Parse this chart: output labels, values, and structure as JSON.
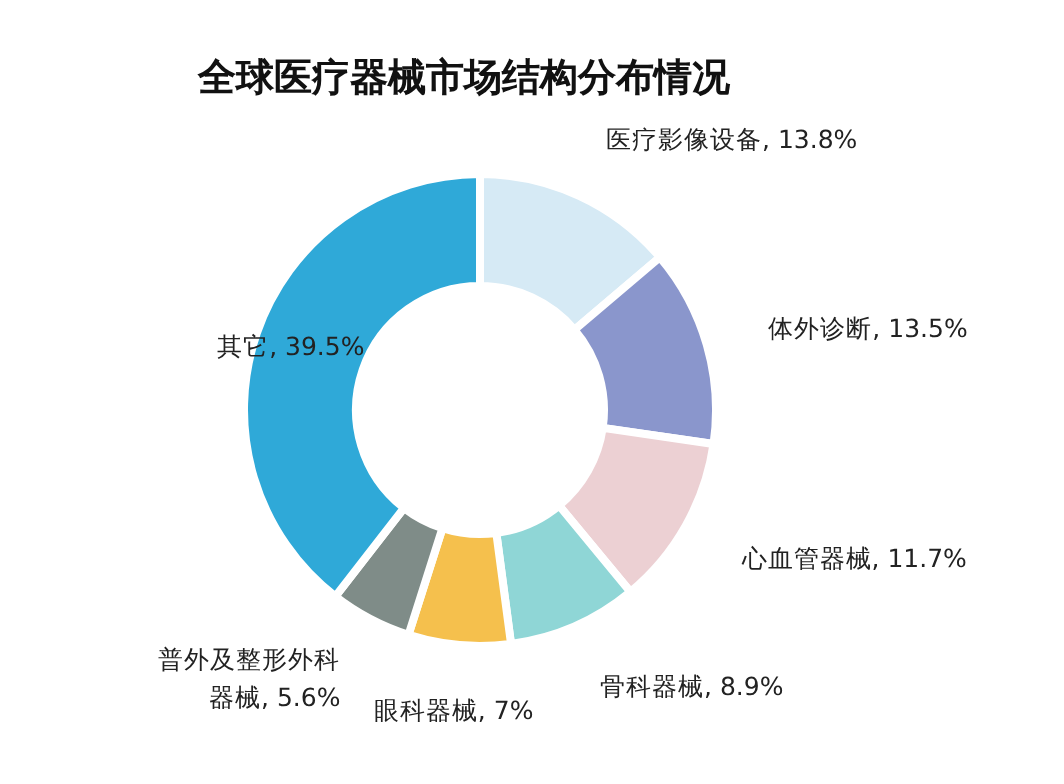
{
  "chart_data": {
    "type": "donut",
    "title": "全球医疗器械市场结构分布情况",
    "categories": [
      "医疗影像设备",
      "体外诊断",
      "心血管器械",
      "骨科器械",
      "眼科器械",
      "普外及整形外科器械",
      "其它"
    ],
    "values": [
      13.8,
      13.5,
      11.7,
      8.9,
      7,
      5.6,
      39.5
    ],
    "value_labels": [
      "13.8%",
      "13.5%",
      "11.7%",
      "8.9%",
      "7%",
      "5.6%",
      "39.5%"
    ],
    "colors": [
      "#d6eaf5",
      "#8a96cc",
      "#ecd0d3",
      "#8fd6d6",
      "#f5c04d",
      "#7f8c88",
      "#2fa9d8"
    ]
  }
}
